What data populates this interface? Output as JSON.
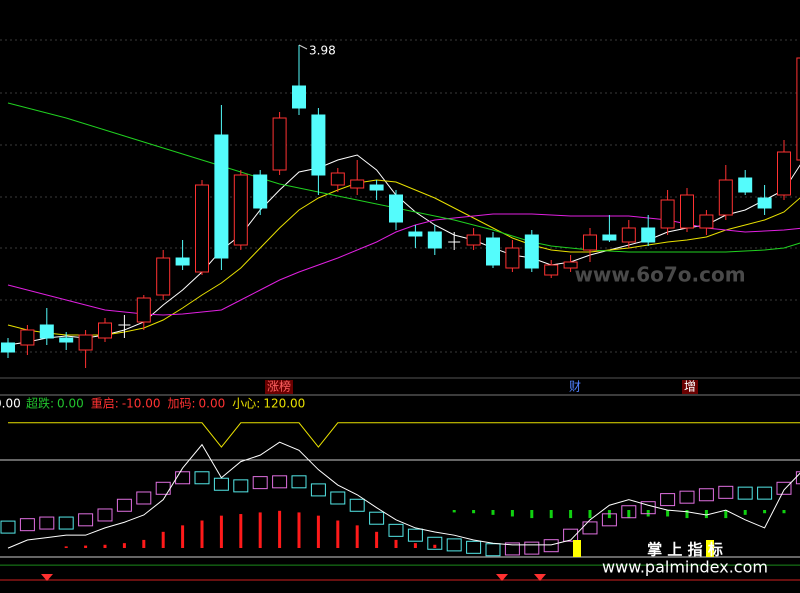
{
  "chart_data": [
    {
      "type": "candlestick",
      "open": [
        1.0,
        0.98,
        1.18,
        1.05,
        0.93,
        1.05,
        1.18,
        1.21,
        1.48,
        1.85,
        1.71,
        3.08,
        1.98,
        2.68,
        2.73,
        3.57,
        3.28,
        2.58,
        2.55,
        2.58,
        2.48,
        2.11,
        2.11,
        2.01,
        1.98,
        2.05,
        1.75,
        2.08,
        1.68,
        1.75,
        1.93,
        2.08,
        2.01,
        2.15,
        2.15,
        2.15,
        2.15,
        2.28,
        2.65,
        2.45,
        2.48,
        2.83
      ],
      "high": [
        1.05,
        1.18,
        1.35,
        1.11,
        1.13,
        1.25,
        1.28,
        1.48,
        1.93,
        2.03,
        2.63,
        3.38,
        2.73,
        2.73,
        3.31,
        3.98,
        3.35,
        2.75,
        2.83,
        2.63,
        2.53,
        2.18,
        2.18,
        2.11,
        2.15,
        2.11,
        2.03,
        2.13,
        1.83,
        1.88,
        2.15,
        2.28,
        2.23,
        2.28,
        2.53,
        2.55,
        2.33,
        2.78,
        2.73,
        2.58,
        3.03,
        3.88
      ],
      "low": [
        0.85,
        0.88,
        0.98,
        0.93,
        0.75,
        1.01,
        1.05,
        1.13,
        1.43,
        1.73,
        1.68,
        1.73,
        1.93,
        2.28,
        2.68,
        3.28,
        2.48,
        2.51,
        2.48,
        2.43,
        2.13,
        1.95,
        1.88,
        1.93,
        1.93,
        1.75,
        1.71,
        1.71,
        1.65,
        1.71,
        1.81,
        2.01,
        1.95,
        1.97,
        2.08,
        2.11,
        2.08,
        2.23,
        2.48,
        2.28,
        2.43,
        2.68
      ],
      "close": [
        0.91,
        1.13,
        1.05,
        1.01,
        1.08,
        1.2,
        1.18,
        1.45,
        1.85,
        1.78,
        2.58,
        1.85,
        2.68,
        2.35,
        3.25,
        3.35,
        2.68,
        2.7,
        2.63,
        2.53,
        2.21,
        2.07,
        1.95,
        2.01,
        2.08,
        1.78,
        1.95,
        1.75,
        1.78,
        1.81,
        2.08,
        2.03,
        2.15,
        2.01,
        2.43,
        2.48,
        2.28,
        2.63,
        2.51,
        2.35,
        2.91,
        3.85
      ],
      "up_color": "#ff3232",
      "down_color": "#54fcfc",
      "ylim": [
        0.63,
        4.43
      ],
      "series": [
        {
          "color": "#ffffff",
          "values": [
            0.98,
            1.01,
            1.05,
            1.07,
            1.05,
            1.08,
            1.13,
            1.21,
            1.38,
            1.53,
            1.71,
            1.93,
            2.08,
            2.33,
            2.53,
            2.71,
            2.75,
            2.83,
            2.88,
            2.73,
            2.48,
            2.31,
            2.18,
            2.08,
            2.03,
            1.95,
            1.88,
            1.85,
            1.78,
            1.81,
            1.88,
            1.93,
            1.98,
            2.03,
            2.11,
            2.15,
            2.18,
            2.28,
            2.33,
            2.43,
            2.53,
            2.83
          ]
        },
        {
          "color": "#e8e000",
          "values": [
            1.18,
            1.13,
            1.1,
            1.08,
            1.08,
            1.08,
            1.11,
            1.15,
            1.23,
            1.35,
            1.48,
            1.6,
            1.75,
            1.95,
            2.15,
            2.33,
            2.45,
            2.53,
            2.6,
            2.63,
            2.61,
            2.53,
            2.45,
            2.35,
            2.25,
            2.15,
            2.05,
            1.98,
            1.93,
            1.91,
            1.91,
            1.93,
            1.95,
            1.98,
            2.01,
            2.03,
            2.06,
            2.13,
            2.18,
            2.23,
            2.31,
            2.48
          ]
        },
        {
          "color": "#e020e0",
          "values": [
            1.58,
            1.53,
            1.48,
            1.43,
            1.38,
            1.33,
            1.31,
            1.29,
            1.28,
            1.29,
            1.31,
            1.33,
            1.43,
            1.53,
            1.63,
            1.71,
            1.78,
            1.85,
            1.93,
            2.01,
            2.11,
            2.18,
            2.23,
            2.25,
            2.27,
            2.29,
            2.29,
            2.29,
            2.28,
            2.27,
            2.27,
            2.27,
            2.27,
            2.25,
            2.23,
            2.19,
            2.15,
            2.13,
            2.11,
            2.12,
            2.13,
            2.15
          ]
        },
        {
          "color": "#20d020",
          "values": [
            3.4,
            3.35,
            3.3,
            3.25,
            3.19,
            3.13,
            3.07,
            3.01,
            2.95,
            2.89,
            2.83,
            2.77,
            2.71,
            2.65,
            2.59,
            2.55,
            2.51,
            2.47,
            2.43,
            2.39,
            2.35,
            2.31,
            2.27,
            2.23,
            2.18,
            2.13,
            2.07,
            2.01,
            1.97,
            1.95,
            1.93,
            1.92,
            1.91,
            1.91,
            1.91,
            1.91,
            1.91,
            1.91,
            1.92,
            1.93,
            1.95,
            2.01
          ]
        }
      ],
      "events": [
        "涨榜",
        "财",
        "增"
      ]
    },
    {
      "type": "indicator",
      "ylim": [
        -44.5,
        188
      ],
      "legend_prefix": "0.00",
      "levels": [
        {
          "name": "超跌:",
          "value": 0,
          "value_label": "0.00",
          "color": "#22c32e"
        },
        {
          "name": "重启:",
          "value": -10,
          "value_label": "-10.00",
          "color": "#ff3232"
        },
        {
          "name": "加码:",
          "value": 0,
          "value_label": "0.00",
          "color": "#ff3232"
        },
        {
          "name": "小心:",
          "value": 120,
          "value_label": "120.00",
          "color": "#e8e000"
        }
      ],
      "series": [
        {
          "color": "#e8e000",
          "values": [
            166,
            166,
            166,
            166,
            166,
            166,
            166,
            166,
            166,
            166,
            166,
            136,
            166,
            166,
            166,
            166,
            136,
            166,
            166,
            166,
            166,
            166,
            166,
            166,
            166,
            166,
            166,
            166,
            166,
            166,
            166,
            166,
            166,
            166,
            166,
            166,
            166,
            166,
            166,
            166,
            166,
            166
          ]
        },
        {
          "color": "#ffffff",
          "values": [
            11,
            21,
            24,
            27,
            27,
            36,
            43,
            52,
            71,
            110,
            139,
            98,
            118,
            126,
            142,
            132,
            108,
            89,
            77,
            61,
            46,
            36,
            31,
            27,
            21,
            17,
            15,
            15,
            15,
            21,
            46,
            64,
            71,
            64,
            58,
            56,
            52,
            58,
            46,
            36,
            83,
            108
          ]
        }
      ],
      "boxes": {
        "up_color": "#e070e0",
        "down_color": "#54e8e8",
        "values": [
          37,
          40,
          42,
          42,
          46,
          52,
          64,
          73,
          85,
          98,
          98,
          90,
          88,
          92,
          93,
          93,
          83,
          73,
          64,
          48,
          33,
          27,
          17,
          15,
          12,
          9,
          10,
          11,
          14,
          27,
          36,
          46,
          56,
          61,
          71,
          74,
          77,
          80,
          79,
          79,
          85,
          98
        ]
      },
      "bars": {
        "up_color": "#ff1a1a",
        "down_color": "#10d010",
        "values": [
          0,
          0,
          0,
          2,
          3,
          4,
          6,
          10,
          20,
          28,
          34,
          40,
          42,
          44,
          46,
          44,
          40,
          34,
          28,
          20,
          10,
          6,
          4,
          -3,
          -4,
          -6,
          -8,
          -10,
          -10,
          -10,
          -10,
          -10,
          -10,
          -8,
          -8,
          -10,
          -10,
          -10,
          -6,
          -4,
          -4,
          12
        ]
      }
    }
  ],
  "watermarks": [
    "www.6o7o.com",
    "掌 上 指 标",
    "www.palmindex.com"
  ]
}
